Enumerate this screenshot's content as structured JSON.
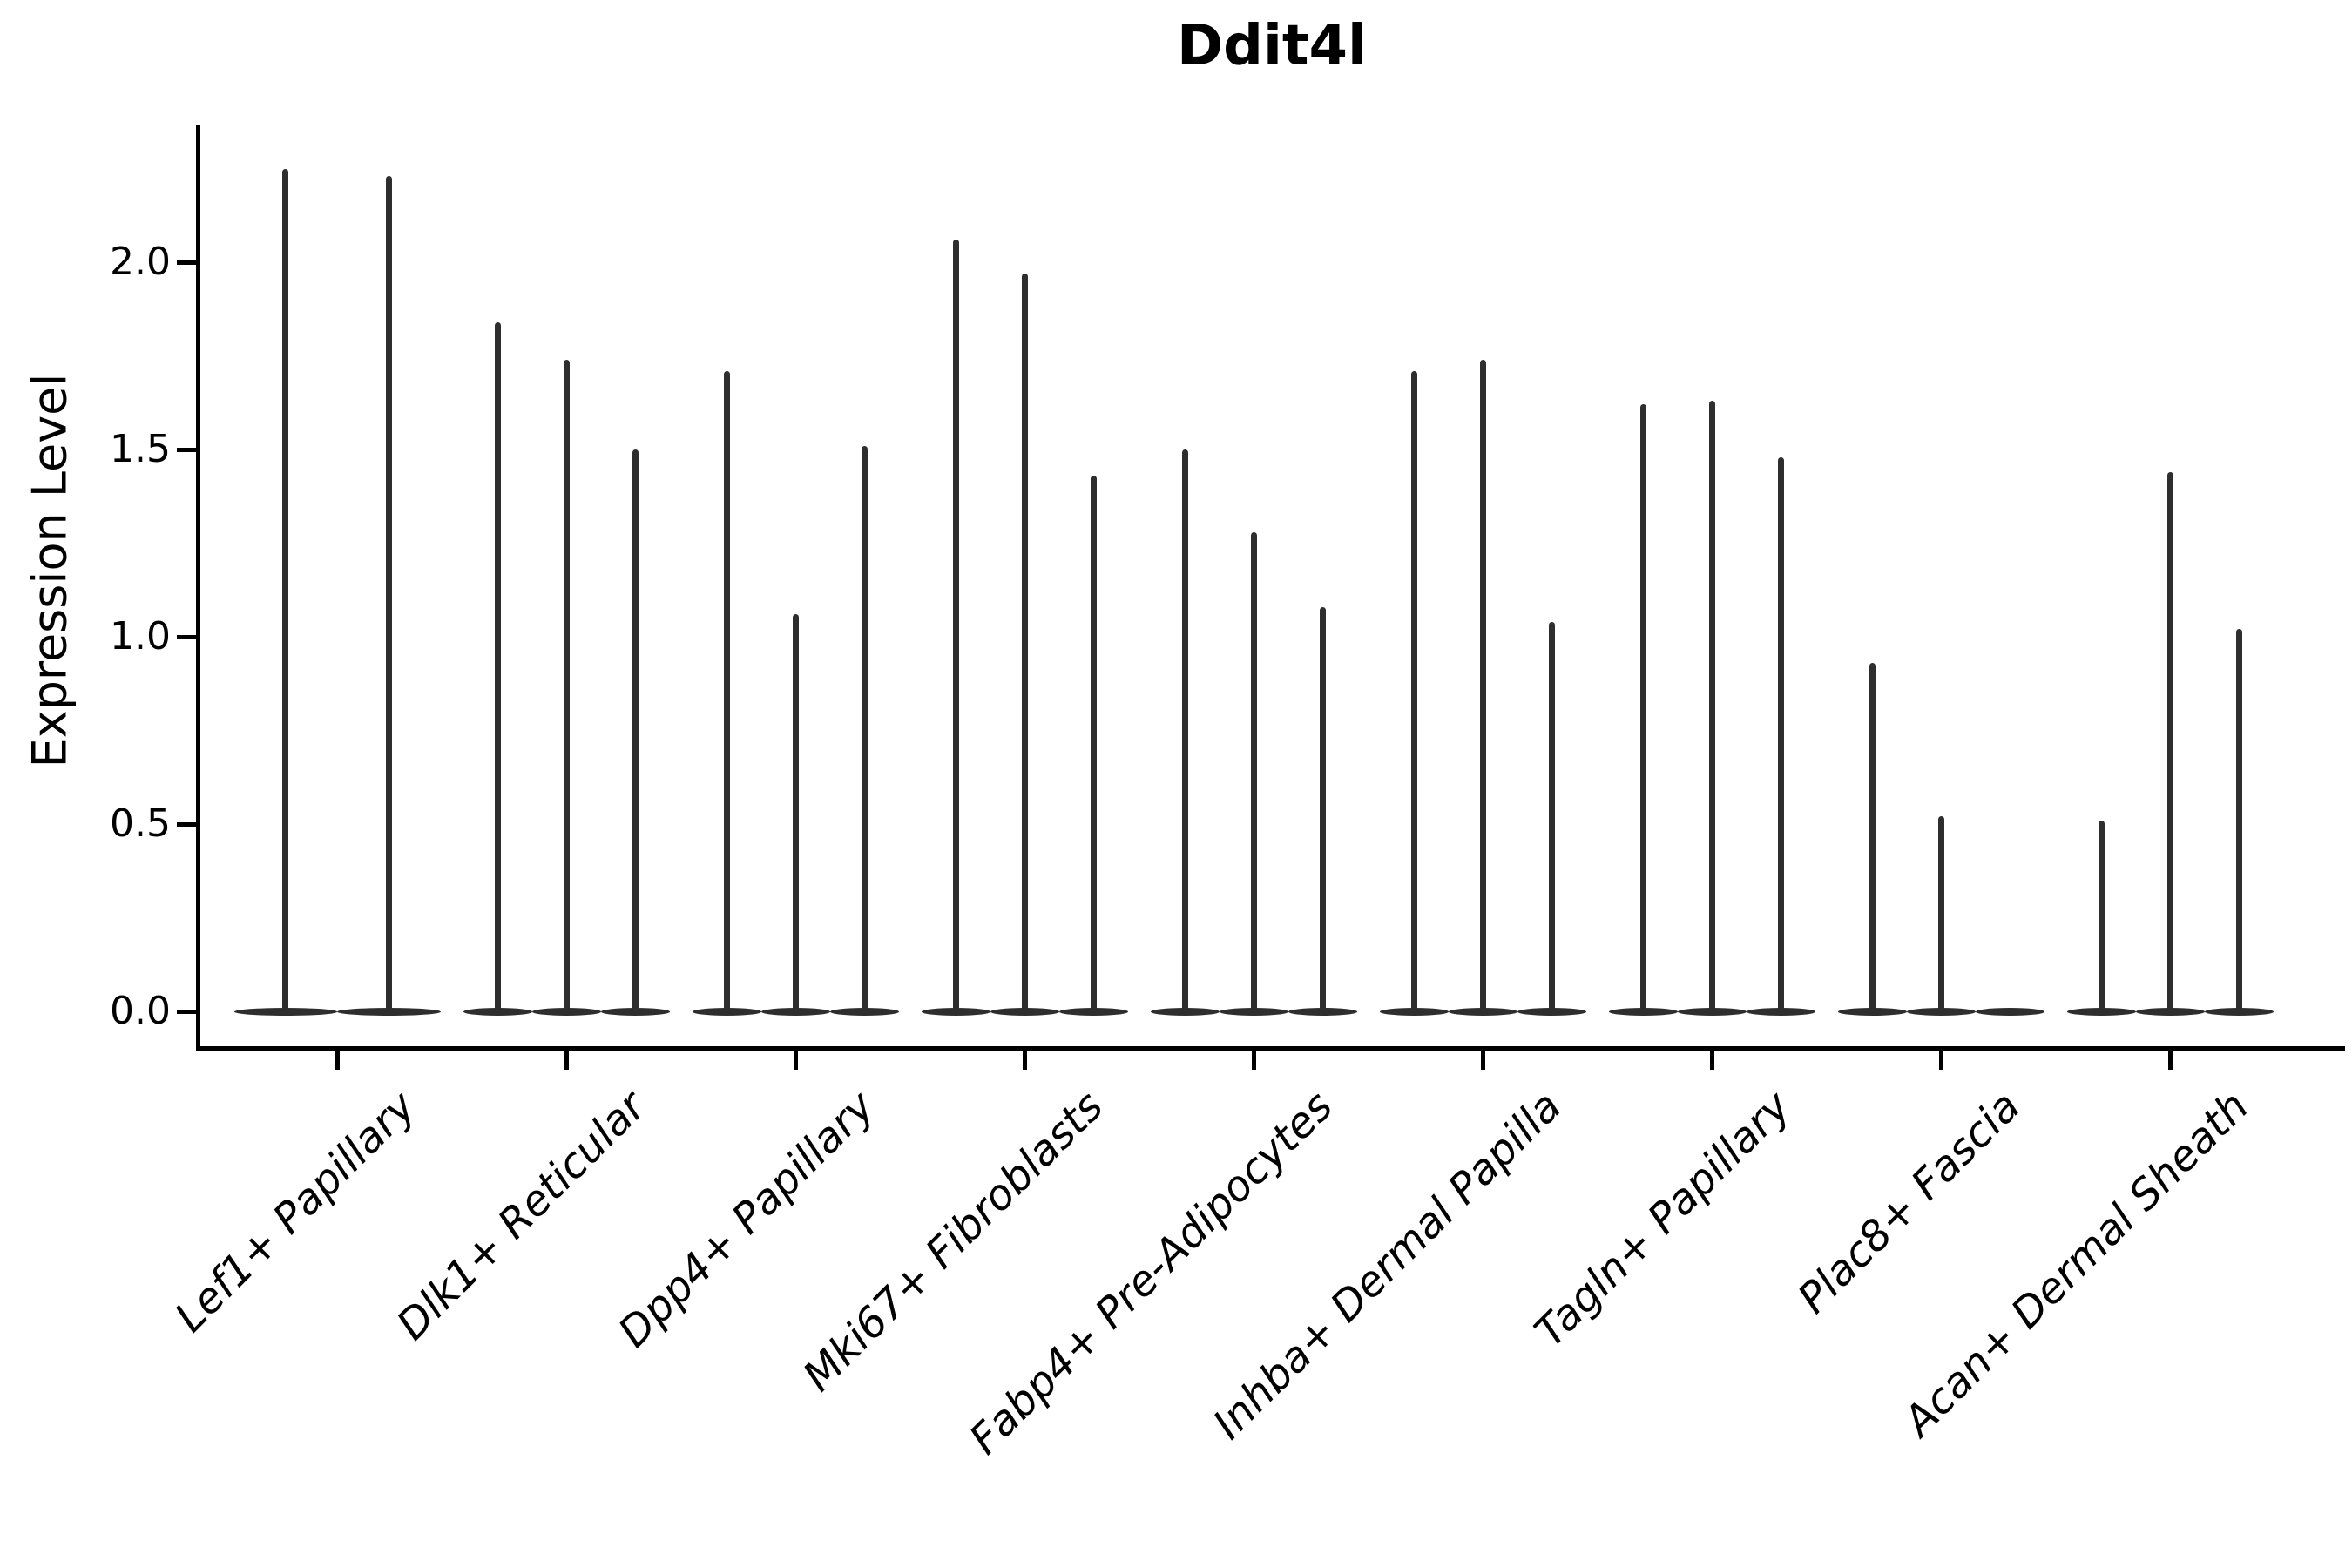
{
  "title": "Ddit4l",
  "colors": {
    "violin_fill": "#2e2e2e",
    "axis": "#000000",
    "background": "#ffffff"
  },
  "chart_data": {
    "type": "violin",
    "title": "Ddit4l",
    "xlabel": "",
    "ylabel": "Expression Level",
    "ylim": [
      -0.1,
      2.37
    ],
    "yticks": [
      0.0,
      0.5,
      1.0,
      1.5,
      2.0
    ],
    "ytick_labels": [
      "0.0",
      "0.5",
      "1.0",
      "1.5",
      "2.0"
    ],
    "grid": false,
    "legend_position": "none",
    "categories": [
      "Lef1+ Papillary",
      "Dlk1+ Reticular",
      "Dpp4+ Papillary",
      "Mki67+ Fibroblasts",
      "Fabp4+ Pre-Adipocytes",
      "Inhba+ Dermal Papilla",
      "Tagln+ Papillary",
      "Plac8+ Fascia",
      "Acan+ Dermal Sheath"
    ],
    "groups": [
      {
        "category": "Lef1+ Papillary",
        "violin_maxima": [
          2.25,
          2.23
        ]
      },
      {
        "category": "Dlk1+ Reticular",
        "violin_maxima": [
          1.84,
          1.74,
          1.5
        ]
      },
      {
        "category": "Dpp4+ Papillary",
        "violin_maxima": [
          1.71,
          1.06,
          1.51
        ]
      },
      {
        "category": "Mki67+ Fibroblasts",
        "violin_maxima": [
          2.06,
          1.97,
          1.43
        ]
      },
      {
        "category": "Fabp4+ Pre-Adipocytes",
        "violin_maxima": [
          1.5,
          1.28,
          1.08
        ]
      },
      {
        "category": "Inhba+ Dermal Papilla",
        "violin_maxima": [
          1.71,
          1.74,
          1.04
        ]
      },
      {
        "category": "Tagln+ Papillary",
        "violin_maxima": [
          1.62,
          1.63,
          1.48
        ]
      },
      {
        "category": "Plac8+ Fascia",
        "violin_maxima": [
          0.93,
          0.52,
          0.0
        ]
      },
      {
        "category": "Acan+ Dermal Sheath",
        "violin_maxima": [
          0.51,
          1.44,
          1.02
        ]
      }
    ],
    "description": "Violin plot of Ddit4l expression; each category contains narrow per-sample violins collapsed at 0 with thin spikes to the maximum expression."
  }
}
